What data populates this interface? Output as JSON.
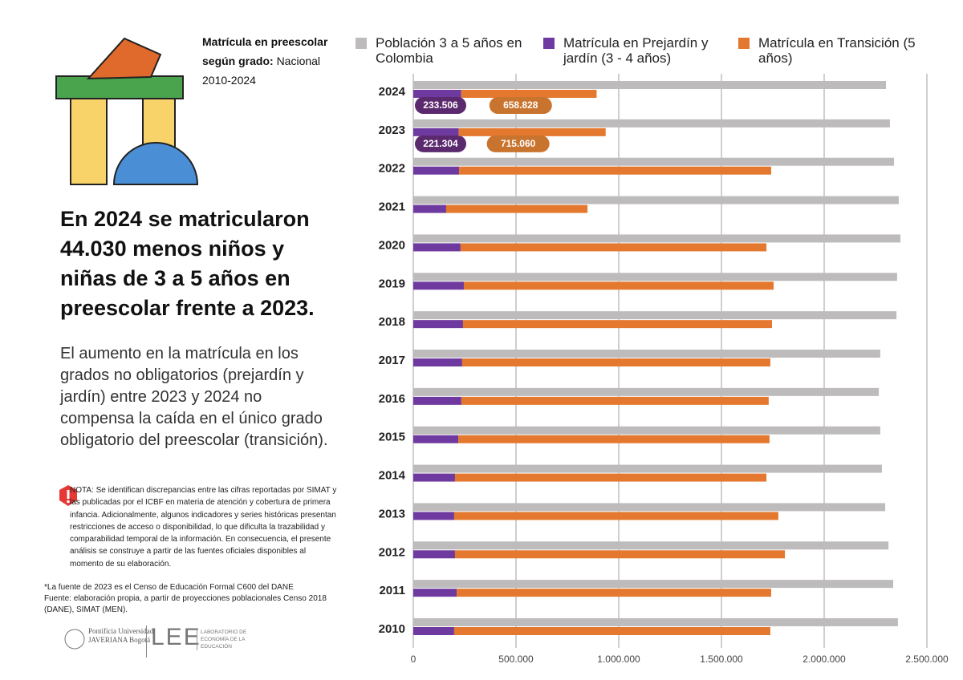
{
  "header": {
    "title": "Matrícula en preescolar según grado:",
    "subtitle": "Nacional 2010-2024"
  },
  "headline": "En 2024 se matricularon 44.030 menos niños y niñas de 3 a 5 años en preescolar frente a 2023.",
  "description": "El aumento en la matrícula en los grados no obligatorios (prejardín y jardín) entre 2023 y 2024 no compensa la caída en el único grado obligatorio del preescolar (transición).",
  "note": "NOTA: Se identifican discrepancias entre las cifras reportadas por SIMAT y las publicadas por el ICBF en materia de atención y cobertura de primera infancia. Adicionalmente, algunos indicadores y series históricas presentan restricciones de acceso o disponibilidad, lo que dificulta la trazabilidad y comparabilidad temporal de la información. En consecuencia, el presente análisis se construye a partir de las fuentes oficiales disponibles al momento de su elaboración.",
  "sources": [
    "*La fuente de 2023 es el Censo de Educación Formal C600 del DANE",
    "Fuente: elaboración propia, a partir de proyecciones poblacionales Censo 2018 (DANE), SIMAT (MEN)."
  ],
  "logos": {
    "university": "Pontificia Universidad JAVERIANA Bogotá",
    "lab": "LEE",
    "lab_name": "LABORATORIO DE ECONOMÍA DE LA EDUCACIÓN"
  },
  "chart_data": {
    "type": "bar",
    "orientation": "horizontal",
    "categories": [
      "2024",
      "2023",
      "2022",
      "2021",
      "2020",
      "2019",
      "2018",
      "2017",
      "2016",
      "2015",
      "2014",
      "2013",
      "2012",
      "2011",
      "2010"
    ],
    "series": [
      {
        "name": "Población 3 a 5 años en Colombia",
        "color": "#bdbbbb",
        "values": [
          2301000,
          2320000,
          2340000,
          2363000,
          2371000,
          2355000,
          2352000,
          2273000,
          2266000,
          2273000,
          2281000,
          2297000,
          2313000,
          2336000,
          2359000
        ]
      },
      {
        "name": "Matrícula en Prejardín y jardín (3 - 4 años)",
        "color": "#6f3aa0",
        "values": [
          233506,
          221304,
          223000,
          160000,
          230000,
          246000,
          242000,
          238000,
          234000,
          219000,
          203000,
          199000,
          203000,
          211000,
          199000
        ],
        "value_labels": [
          "233.506",
          "221.304",
          null,
          null,
          null,
          null,
          null,
          null,
          null,
          null,
          null,
          null,
          null,
          null,
          null
        ],
        "label_color": "#5b2a6e"
      },
      {
        "name": "Matrícula en Transición (5 años)",
        "color": "#e4782f",
        "values": [
          658828,
          715060,
          1519000,
          688000,
          1489000,
          1508000,
          1504000,
          1500000,
          1496000,
          1515000,
          1516000,
          1578000,
          1606000,
          1531000,
          1539000
        ],
        "value_labels": [
          "658.828",
          "715.060",
          null,
          null,
          null,
          null,
          null,
          null,
          null,
          null,
          null,
          null,
          null,
          null,
          null
        ],
        "label_color": "#c8742f"
      }
    ],
    "xlim": [
      0,
      2500000
    ],
    "xticks": [
      0,
      {
        "value": 500000,
        "label": "500.000"
      },
      {
        "value": 1000000,
        "label": "1.000.000"
      },
      {
        "value": 1500000,
        "label": "1.500.000"
      },
      {
        "value": 2000000,
        "label": "2.000.000"
      },
      {
        "value": 2500000,
        "label": "2.500.000"
      }
    ],
    "grid": true,
    "legend": "top"
  }
}
